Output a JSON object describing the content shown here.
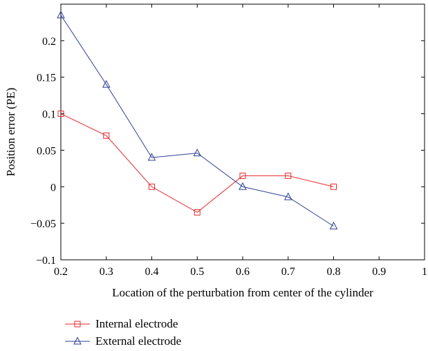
{
  "chart_data": {
    "type": "line",
    "title": "",
    "xlabel": "Location of the perturbation from center of the cylinder",
    "ylabel": "Position error (PE)",
    "xlim": [
      0.2,
      1.0
    ],
    "ylim": [
      -0.1,
      0.25
    ],
    "xticks": [
      "0.2",
      "0.3",
      "0.4",
      "0.5",
      "0.6",
      "0.7",
      "0.8",
      "0.9",
      "1"
    ],
    "yticks": [
      "−0.1",
      "−0.05",
      "0",
      "0.05",
      "0.1",
      "0.15",
      "0.2"
    ],
    "grid": false,
    "legend_position": "below plot",
    "x": [
      0.2,
      0.3,
      0.4,
      0.5,
      0.6,
      0.7,
      0.8
    ],
    "series": [
      {
        "name": "Internal electrode",
        "color": "#e8262b",
        "marker": "square",
        "values": [
          0.1,
          0.07,
          0.0,
          -0.035,
          0.015,
          0.015,
          0.0
        ]
      },
      {
        "name": "External electrode",
        "color": "#2b3f93",
        "marker": "triangle",
        "values": [
          0.235,
          0.14,
          0.04,
          0.046,
          0.0,
          -0.014,
          -0.054
        ]
      }
    ]
  }
}
